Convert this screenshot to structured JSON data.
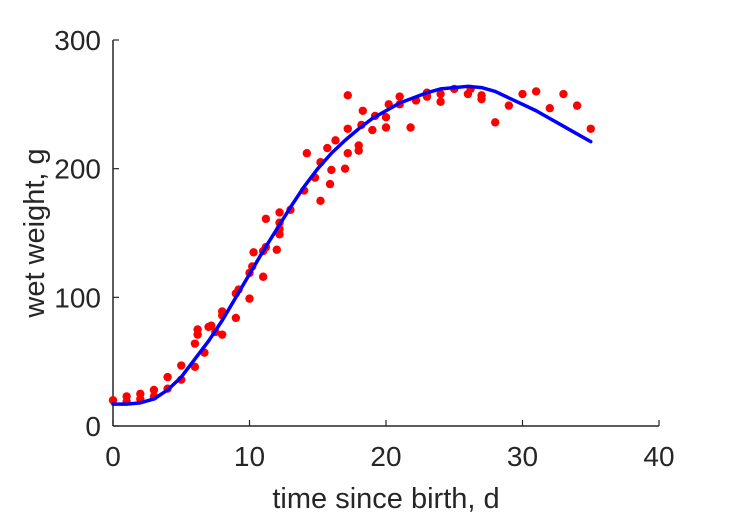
{
  "chart_data": {
    "type": "scatter",
    "title": "",
    "xlabel": "time since birth, d",
    "ylabel": "wet weight, g",
    "xlim": [
      0,
      40
    ],
    "ylim": [
      0,
      300
    ],
    "xticks": [
      0,
      10,
      20,
      30,
      40
    ],
    "yticks": [
      0,
      100,
      200,
      300
    ],
    "grid": false,
    "legend": "none",
    "colors": {
      "points": "#ff0000",
      "fit": "#0000ff",
      "axis": "#262626"
    },
    "series": [
      {
        "kind": "scatter",
        "points": [
          [
            0,
            20
          ],
          [
            1,
            19
          ],
          [
            1,
            23
          ],
          [
            2,
            21
          ],
          [
            2,
            25
          ],
          [
            3,
            23
          ],
          [
            3,
            28
          ],
          [
            4,
            29
          ],
          [
            4,
            38
          ],
          [
            5,
            36
          ],
          [
            5,
            47
          ],
          [
            6,
            46
          ],
          [
            6,
            64
          ],
          [
            6.2,
            71
          ],
          [
            6.2,
            75
          ],
          [
            6.7,
            57
          ],
          [
            7,
            77
          ],
          [
            7.2,
            78
          ],
          [
            7.5,
            73
          ],
          [
            8,
            71
          ],
          [
            8,
            86
          ],
          [
            8,
            89
          ],
          [
            9,
            84
          ],
          [
            9,
            103
          ],
          [
            9.2,
            106
          ],
          [
            10,
            99
          ],
          [
            10,
            119
          ],
          [
            10.2,
            124
          ],
          [
            10.3,
            135
          ],
          [
            11,
            116
          ],
          [
            11,
            136
          ],
          [
            11.2,
            139
          ],
          [
            11.2,
            161
          ],
          [
            12,
            137
          ],
          [
            12.2,
            149
          ],
          [
            12.2,
            153
          ],
          [
            12.2,
            158
          ],
          [
            12.2,
            166
          ],
          [
            13,
            168
          ],
          [
            14,
            183
          ],
          [
            14.2,
            212
          ],
          [
            14.8,
            193
          ],
          [
            15.2,
            175
          ],
          [
            15.2,
            205
          ],
          [
            15.7,
            216
          ],
          [
            15.9,
            188
          ],
          [
            16,
            199
          ],
          [
            16.3,
            222
          ],
          [
            17,
            200
          ],
          [
            17.2,
            212
          ],
          [
            17.2,
            231
          ],
          [
            17.2,
            257
          ],
          [
            18,
            214
          ],
          [
            18,
            218
          ],
          [
            18.2,
            234
          ],
          [
            18.3,
            245
          ],
          [
            19,
            230
          ],
          [
            19.2,
            241
          ],
          [
            20,
            232
          ],
          [
            20,
            240
          ],
          [
            20.2,
            250
          ],
          [
            21,
            250
          ],
          [
            21,
            256
          ],
          [
            21.8,
            232
          ],
          [
            22.2,
            253
          ],
          [
            23,
            256
          ],
          [
            23,
            259
          ],
          [
            24,
            252
          ],
          [
            24,
            258
          ],
          [
            25,
            262
          ],
          [
            26,
            258
          ],
          [
            26.2,
            262
          ],
          [
            27,
            254
          ],
          [
            27,
            257
          ],
          [
            28,
            236
          ],
          [
            29,
            249
          ],
          [
            30,
            258
          ],
          [
            31,
            260
          ],
          [
            32,
            247
          ],
          [
            33,
            258
          ],
          [
            34,
            249
          ],
          [
            35,
            231
          ]
        ]
      },
      {
        "kind": "line",
        "points": [
          [
            0,
            17
          ],
          [
            1,
            17
          ],
          [
            2,
            18
          ],
          [
            3,
            21
          ],
          [
            4,
            28
          ],
          [
            5,
            38
          ],
          [
            6,
            52
          ],
          [
            7,
            66
          ],
          [
            8,
            82
          ],
          [
            9,
            100
          ],
          [
            10,
            118
          ],
          [
            11,
            136
          ],
          [
            12,
            153
          ],
          [
            13,
            170
          ],
          [
            14,
            186
          ],
          [
            15,
            200
          ],
          [
            16,
            212
          ],
          [
            17,
            222
          ],
          [
            18,
            231
          ],
          [
            19,
            239
          ],
          [
            20,
            245
          ],
          [
            21,
            251
          ],
          [
            22,
            255
          ],
          [
            23,
            259
          ],
          [
            24,
            262
          ],
          [
            25,
            263
          ],
          [
            26,
            264
          ],
          [
            27,
            263
          ],
          [
            28,
            260
          ],
          [
            29,
            255
          ],
          [
            30,
            250
          ],
          [
            31,
            245
          ],
          [
            32,
            239
          ],
          [
            33,
            233
          ],
          [
            34,
            227
          ],
          [
            35,
            221
          ]
        ]
      }
    ]
  }
}
